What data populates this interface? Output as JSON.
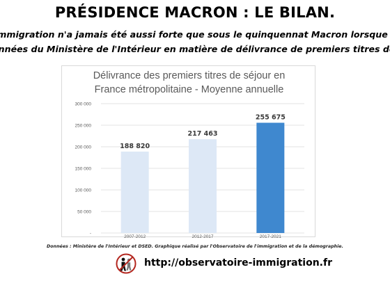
{
  "header": {
    "title": "PRÉSIDENCE MACRON : LE BILAN.",
    "line1": "L'immigration n'a jamais été aussi forte que sous le quinquennat Macron lorsque l'on analyse les",
    "line2": "données du Ministère de l'Intérieur en matière de délivrance de premiers titres de séjour."
  },
  "chart_data": {
    "type": "bar",
    "title_line1": "Délivrance des premiers titres de séjour en",
    "title_line2": "France métropolitaine - Moyenne annuelle",
    "categories": [
      "2007-2012",
      "2012-2017",
      "2017-2021"
    ],
    "values": [
      188820,
      217463,
      255675
    ],
    "value_labels": [
      "188 820",
      "217 463",
      "255 675"
    ],
    "ylim": [
      0,
      300000
    ],
    "yticks": [
      0,
      50000,
      100000,
      150000,
      200000,
      250000,
      300000
    ],
    "ytick_labels": [
      "-",
      "50 000",
      "100 000",
      "150 000",
      "200 000",
      "250 000",
      "300 000"
    ],
    "grid": true,
    "bar_colors": [
      "#dde8f6",
      "#dde8f6",
      "#3f88cf"
    ]
  },
  "footer": {
    "source": "Données : Ministère de l'Intérieur et DSED. Graphique réalisé par l'Observatoire de l'immigration et de la démographie.",
    "url": "http://observatoire-immigration.fr"
  }
}
